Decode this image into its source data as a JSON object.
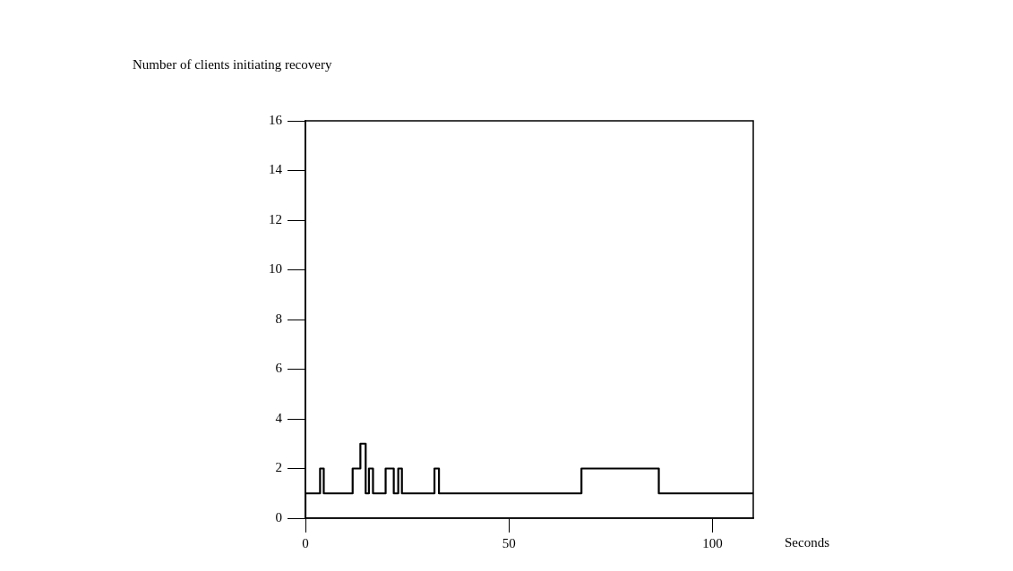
{
  "chart_data": {
    "type": "step",
    "xlabel": "Seconds",
    "ylabel": "Number of clients initiating recovery",
    "x": [
      0,
      0,
      3.6,
      4.5,
      11.6,
      13.5,
      14.8,
      15.6,
      16.6,
      19.7,
      21.7,
      22.8,
      23.7,
      31.7,
      32.8,
      67.8,
      86.8,
      110
    ],
    "values": [
      0,
      1,
      2,
      1,
      2,
      3,
      1,
      2,
      1,
      2,
      1,
      2,
      1,
      2,
      1,
      2,
      1,
      1
    ],
    "color": "#000000",
    "xlim": [
      0,
      110
    ],
    "xticks": [
      0,
      50,
      100
    ],
    "ylim": [
      0,
      16
    ],
    "yticks": [
      0,
      2,
      4,
      6,
      8,
      10,
      12,
      14,
      16
    ],
    "grid": false,
    "legend": false,
    "marker": "none",
    "line_style": "solid"
  }
}
